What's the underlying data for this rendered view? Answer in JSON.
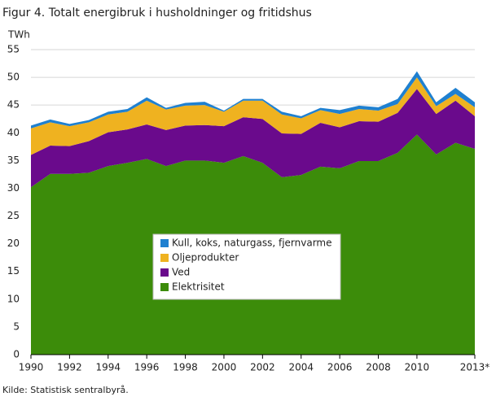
{
  "chart_data": {
    "type": "stacked_area",
    "title": "Figur 4. Totalt energibruk i husholdninger og fritidshus",
    "y_label": "TWh",
    "source": "Kilde: Statistisk sentralbyrå.",
    "categories": [
      "1990",
      null,
      "1992",
      null,
      "1994",
      null,
      "1996",
      null,
      "1998",
      null,
      "2000",
      null,
      "2002",
      null,
      "2004",
      null,
      "2006",
      null,
      "2008",
      null,
      "2010",
      null,
      null,
      "2013*"
    ],
    "series": [
      {
        "name": "Elektrisitet",
        "color": "#3c8c0a",
        "values": [
          30.2,
          32.6,
          32.6,
          32.8,
          34.0,
          34.6,
          35.3,
          34.0,
          35.0,
          35.0,
          34.6,
          35.8,
          34.6,
          32.0,
          32.4,
          33.9,
          33.6,
          34.9,
          34.9,
          36.4,
          39.7,
          36.1,
          38.2,
          37.1
        ]
      },
      {
        "name": "Ved",
        "color": "#6a0a8c",
        "values": [
          5.8,
          5.1,
          5.0,
          5.7,
          6.1,
          6.0,
          6.2,
          6.5,
          6.3,
          6.4,
          6.6,
          7.0,
          7.9,
          7.9,
          7.4,
          7.9,
          7.4,
          7.2,
          7.1,
          7.2,
          8.2,
          7.3,
          7.6,
          5.9
        ]
      },
      {
        "name": "Oljeprodukter",
        "color": "#efb220",
        "values": [
          4.8,
          4.2,
          3.6,
          3.4,
          3.2,
          3.2,
          4.3,
          3.7,
          3.6,
          3.6,
          2.6,
          3.0,
          3.3,
          3.4,
          2.8,
          2.3,
          2.4,
          2.2,
          2.0,
          1.6,
          2.1,
          1.4,
          1.2,
          1.6
        ]
      },
      {
        "name": "Kull, koks, naturgass, fjernvarme",
        "color": "#1f80d0",
        "values": [
          0.5,
          0.5,
          0.4,
          0.4,
          0.5,
          0.5,
          0.6,
          0.3,
          0.5,
          0.6,
          0.2,
          0.3,
          0.3,
          0.5,
          0.4,
          0.4,
          0.7,
          0.6,
          0.6,
          0.9,
          1.1,
          0.7,
          1.1,
          0.9
        ]
      }
    ],
    "ylim": [
      0,
      55
    ],
    "yticks": [
      0,
      5,
      10,
      15,
      20,
      25,
      30,
      35,
      40,
      45,
      50,
      55
    ],
    "grid": true
  }
}
